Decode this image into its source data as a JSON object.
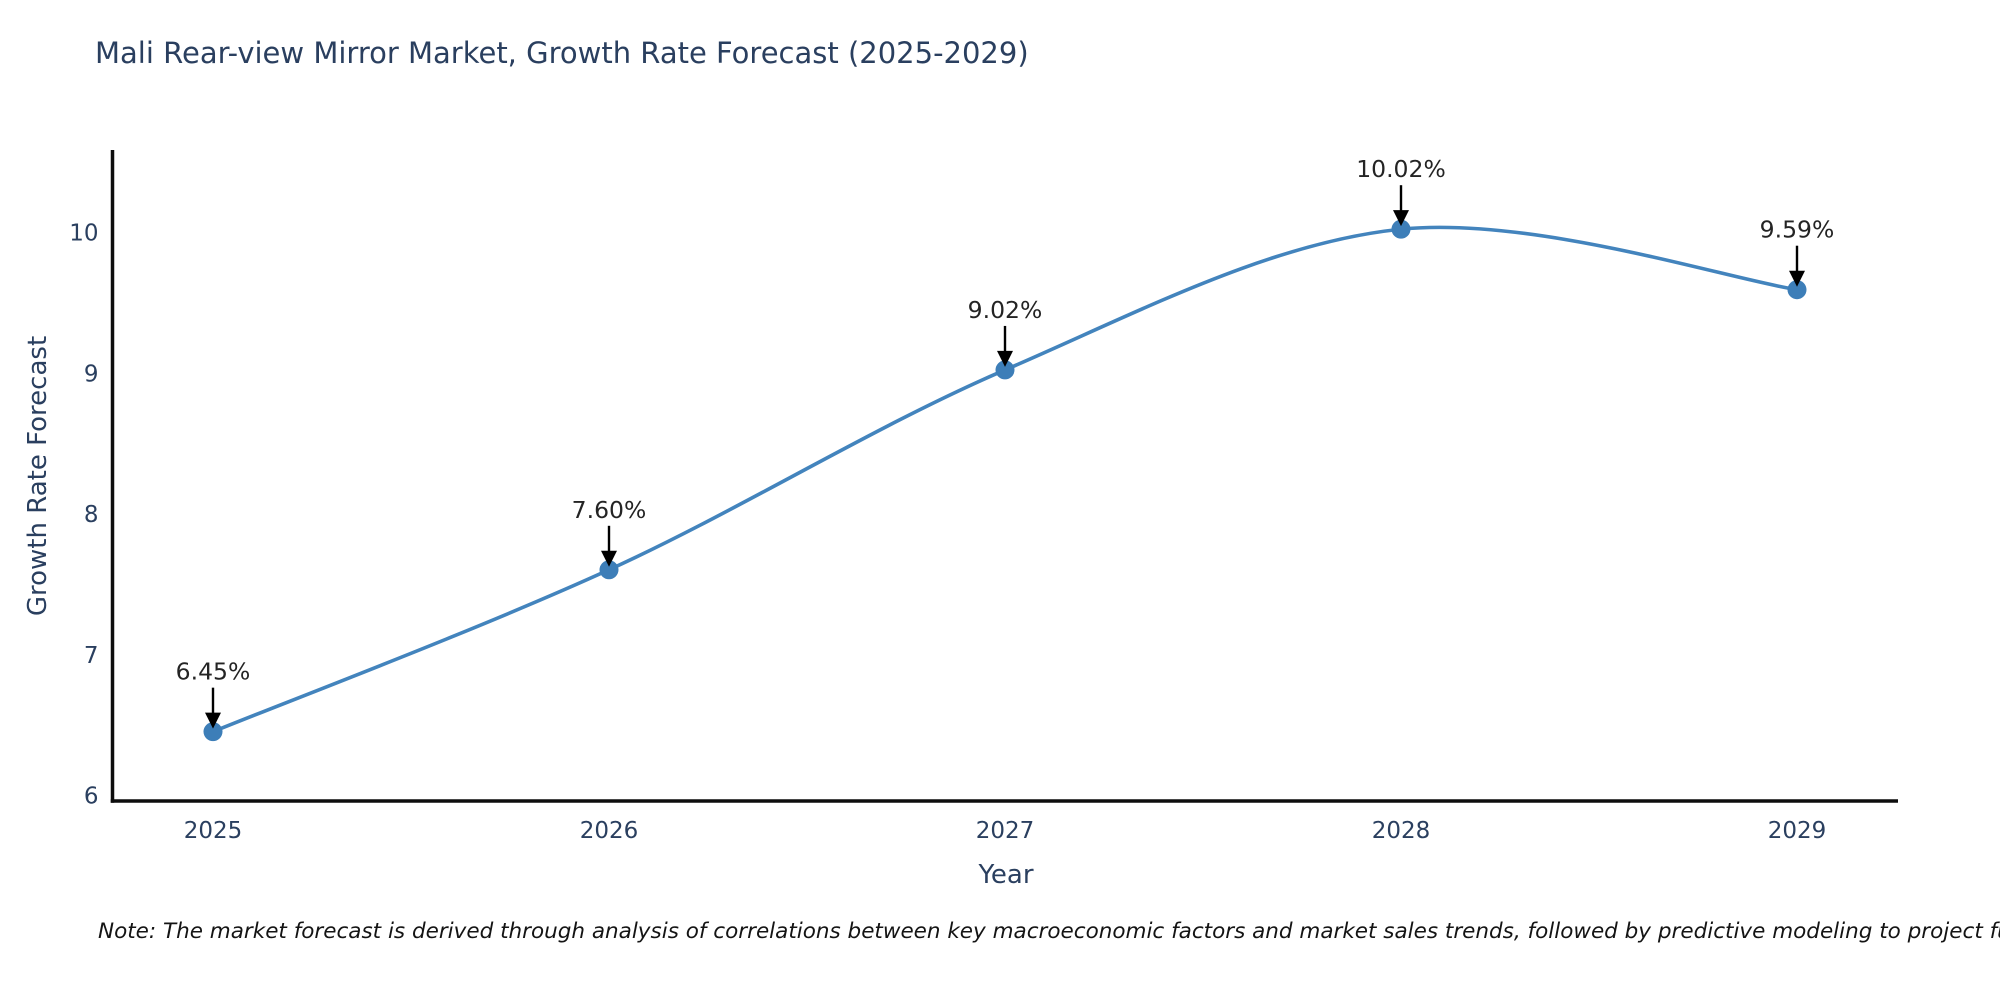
{
  "title": "Mali Rear-view Mirror Market, Growth Rate Forecast (2025-2029)",
  "note": "Note: The market forecast is derived through analysis of correlations between key macroeconomic factors and market sales trends, followed by predictive modeling to project future sales",
  "chart_data": {
    "type": "line",
    "line_shape": "spline",
    "title": "Mali Rear-view Mirror Market, Growth Rate Forecast (2025-2029)",
    "xlabel": "Year",
    "ylabel": "Growth Rate Forecast",
    "x": [
      2025,
      2026,
      2027,
      2028,
      2029
    ],
    "values": [
      6.45,
      7.6,
      9.02,
      10.02,
      9.59
    ],
    "point_labels": [
      "6.45%",
      "7.60%",
      "9.02%",
      "10.02%",
      "9.59%"
    ],
    "xticks": [
      "2025",
      "2026",
      "2027",
      "2028",
      "2029"
    ],
    "yticks": [
      6,
      7,
      8,
      9,
      10
    ],
    "ylim": [
      5.96,
      10.6
    ],
    "grid": false,
    "legend_position": "none",
    "markers": true,
    "annotations_have_arrows": true,
    "colors": {
      "line": "#4384bd",
      "marker": "#3d7eb8",
      "title_text": "#2a3f5f",
      "tick_text": "#2a3f5f",
      "axis_line": "#0d0d0d",
      "annotation_text": "#242424",
      "annotation_arrow": "#000000",
      "note_text": "#141414",
      "background": "#ffffff"
    }
  }
}
